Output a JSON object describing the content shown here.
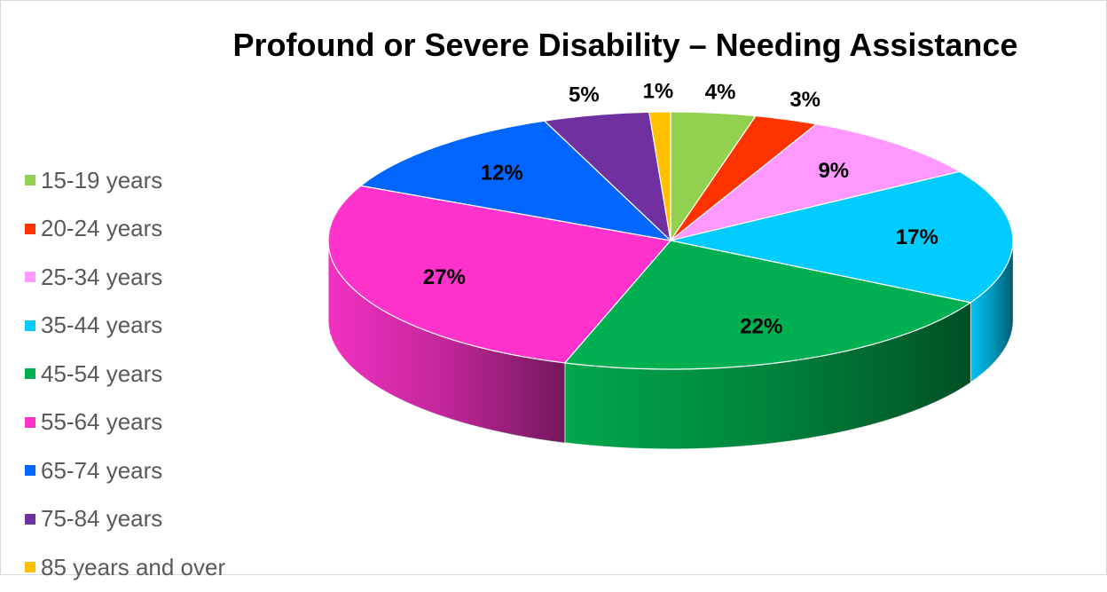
{
  "chart_data": {
    "type": "pie",
    "title": "Profound or Severe Disability – Needing Assistance",
    "legend_position": "left",
    "slices": [
      {
        "name": "15-19 years",
        "value": 4,
        "label": "4%",
        "color": "#92d050"
      },
      {
        "name": "20-24 years",
        "value": 3,
        "label": "3%",
        "color": "#ff3300"
      },
      {
        "name": "25-34 years",
        "value": 9,
        "label": "9%",
        "color": "#ff99ff"
      },
      {
        "name": "35-44 years",
        "value": 17,
        "label": "17%",
        "color": "#00ccff"
      },
      {
        "name": "45-54 years",
        "value": 22,
        "label": "22%",
        "color": "#00b050"
      },
      {
        "name": "55-64 years",
        "value": 27,
        "label": "27%",
        "color": "#ff33cc"
      },
      {
        "name": "65-74 years",
        "value": 12,
        "label": "12%",
        "color": "#0066ff"
      },
      {
        "name": "75-84 years",
        "value": 5,
        "label": "5%",
        "color": "#7030a0"
      },
      {
        "name": "85 years and over",
        "value": 1,
        "label": "1%",
        "color": "#ffc000"
      }
    ]
  }
}
